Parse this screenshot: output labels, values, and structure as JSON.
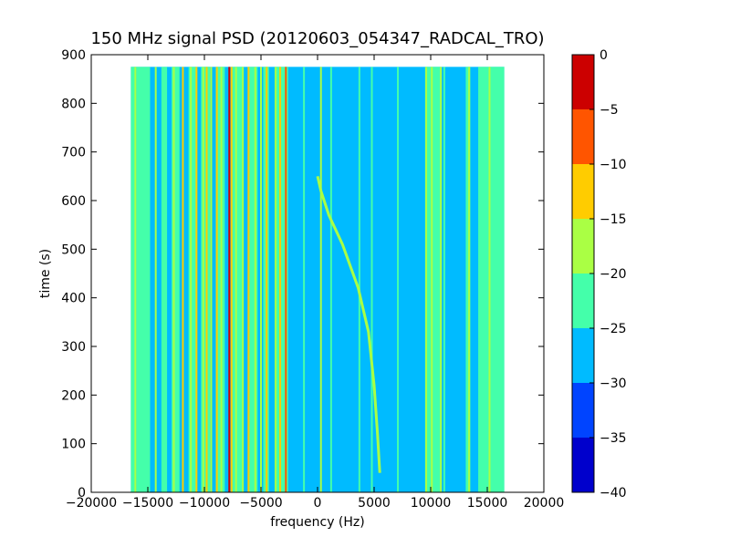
{
  "chart_data": {
    "type": "heatmap",
    "title": "150 MHz signal PSD (20120603_054347_RADCAL_TRO)",
    "xlabel": "frequency (Hz)",
    "ylabel": "time (s)",
    "xlim": [
      -20000,
      20000
    ],
    "ylim": [
      0,
      900
    ],
    "xticks": [
      -20000,
      -15000,
      -10000,
      -5000,
      0,
      5000,
      10000,
      15000,
      20000
    ],
    "xtick_labels": [
      "−20000",
      "−15000",
      "−10000",
      "−5000",
      "0",
      "5000",
      "10000",
      "15000",
      "20000"
    ],
    "yticks": [
      0,
      100,
      200,
      300,
      400,
      500,
      600,
      700,
      800,
      900
    ],
    "ytick_labels": [
      "0",
      "100",
      "200",
      "300",
      "400",
      "500",
      "600",
      "700",
      "800",
      "900"
    ],
    "data_extent": {
      "x": [
        -16500,
        16500
      ],
      "y": [
        0,
        875
      ]
    },
    "background_level": -27.5,
    "colorbar": {
      "levels": [
        -40,
        -35,
        -30,
        -25,
        -20,
        -15,
        -10,
        -5,
        0
      ],
      "tick_labels": [
        "−40",
        "−35",
        "−30",
        "−25",
        "−20",
        "−15",
        "−10",
        "−5",
        "0"
      ],
      "colors": [
        "#0000cc",
        "#0044ff",
        "#00bbff",
        "#44ffaa",
        "#aaff44",
        "#ffcc00",
        "#ff5500",
        "#cc0000"
      ]
    },
    "regions": [
      {
        "x": [
          -16500,
          -16000
        ],
        "level": -22.5
      },
      {
        "x": [
          -16000,
          -14800
        ],
        "level": -22.5
      },
      {
        "x": [
          -13800,
          -13300
        ],
        "level": -22.5
      },
      {
        "x": [
          -12900,
          -12200
        ],
        "level": -22.5
      },
      {
        "x": [
          -11400,
          -10700
        ],
        "level": -22.5
      },
      {
        "x": [
          -10300,
          -9500
        ],
        "level": -22.5
      },
      {
        "x": [
          -9000,
          -8200
        ],
        "level": -22.5
      },
      {
        "x": [
          -7600,
          -6600
        ],
        "level": -22.5
      },
      {
        "x": [
          -6100,
          -5300
        ],
        "level": -22.5
      },
      {
        "x": [
          -4800,
          -4300
        ],
        "level": -22.5
      },
      {
        "x": [
          -3800,
          -2600
        ],
        "level": -22.5
      },
      {
        "x": [
          9500,
          10900
        ],
        "level": -22.5
      },
      {
        "x": [
          13100,
          13500
        ],
        "level": -22.5
      },
      {
        "x": [
          14200,
          16500
        ],
        "level": -22.5
      }
    ],
    "lines": [
      {
        "x": -16100,
        "level": -17.5
      },
      {
        "x": -14300,
        "level": -17.5
      },
      {
        "x": -12700,
        "level": -17.5
      },
      {
        "x": -11900,
        "level": -12.5
      },
      {
        "x": -11200,
        "level": -17.5
      },
      {
        "x": -10700,
        "level": -12.5
      },
      {
        "x": -10100,
        "level": -17.5
      },
      {
        "x": -9800,
        "level": -12.5
      },
      {
        "x": -9400,
        "level": -17.5
      },
      {
        "x": -8900,
        "level": -12.5
      },
      {
        "x": -8500,
        "level": -17.5
      },
      {
        "x": -7800,
        "level": -2.5
      },
      {
        "x": -7600,
        "level": -12.5
      },
      {
        "x": -7200,
        "level": -17.5
      },
      {
        "x": -6600,
        "level": -17.5
      },
      {
        "x": -6100,
        "level": -12.5
      },
      {
        "x": -5500,
        "level": -17.5
      },
      {
        "x": -5000,
        "level": -17.5
      },
      {
        "x": -4500,
        "level": -12.5
      },
      {
        "x": -3700,
        "level": -17.5
      },
      {
        "x": -3300,
        "level": -12.5
      },
      {
        "x": -2800,
        "level": -7.5
      },
      {
        "x": -1200,
        "level": -22.5
      },
      {
        "x": 300,
        "level": -17.5
      },
      {
        "x": 1200,
        "level": -22.5
      },
      {
        "x": 3700,
        "level": -22.5
      },
      {
        "x": 4800,
        "level": -22.5
      },
      {
        "x": 7100,
        "level": -22.5
      },
      {
        "x": 9600,
        "level": -17.5
      },
      {
        "x": 10100,
        "level": -17.5
      },
      {
        "x": 10900,
        "level": -17.5
      },
      {
        "x": 11200,
        "level": -22.5
      },
      {
        "x": 13400,
        "level": -17.5
      },
      {
        "x": 15200,
        "level": -17.5
      }
    ],
    "curve": {
      "level": -17.5,
      "points": [
        [
          5500,
          40
        ],
        [
          5300,
          120
        ],
        [
          5000,
          220
        ],
        [
          4500,
          330
        ],
        [
          3600,
          420
        ],
        [
          2200,
          510
        ],
        [
          1000,
          570
        ],
        [
          300,
          620
        ],
        [
          0,
          650
        ]
      ]
    }
  }
}
